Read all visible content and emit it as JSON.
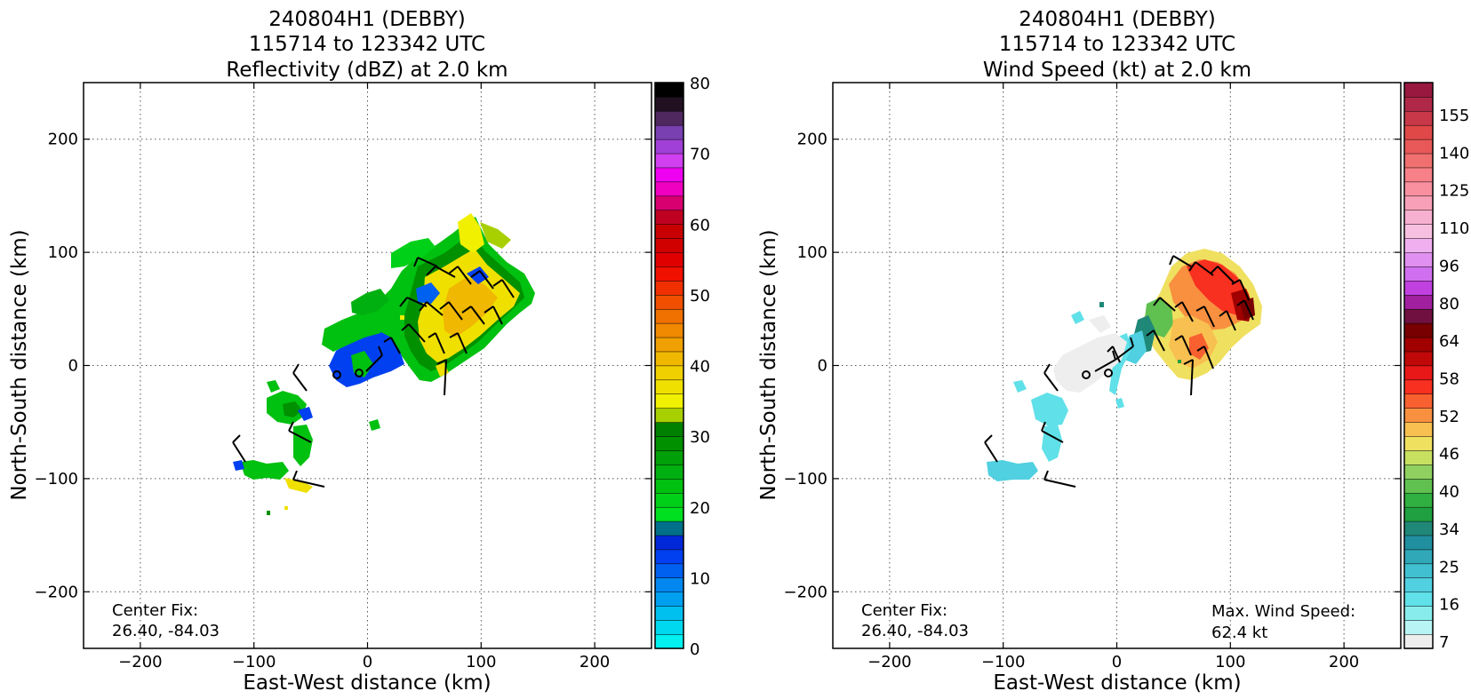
{
  "panels": [
    {
      "title_lines": [
        "240804H1 (DEBBY)",
        "115714 to 123342 UTC",
        "Reflectivity (dBZ) at 2.0 km"
      ],
      "xlabel": "East-West distance (km)",
      "ylabel": "North-South distance (km)",
      "center_fix": [
        "Center Fix:",
        "26.40, -84.03"
      ],
      "extra_note": []
    },
    {
      "title_lines": [
        "240804H1 (DEBBY)",
        "115714 to 123342 UTC",
        "Wind Speed (kt) at 2.0 km"
      ],
      "xlabel": "East-West distance (km)",
      "ylabel": "North-South distance (km)",
      "center_fix": [
        "Center Fix:",
        "26.40, -84.03"
      ],
      "extra_note": [
        "Max. Wind Speed:",
        "62.4 kt"
      ]
    }
  ],
  "chart_data": [
    {
      "type": "heatmap",
      "title": "240804H1 (DEBBY) 115714 to 123342 UTC Reflectivity (dBZ) at 2.0 km",
      "xlabel": "East-West distance (km)",
      "ylabel": "North-South distance (km)",
      "xlim": [
        -250,
        250
      ],
      "ylim": [
        -250,
        250
      ],
      "xticks": [
        -200,
        -100,
        0,
        100,
        200
      ],
      "yticks": [
        -200,
        -100,
        0,
        100,
        200
      ],
      "grid": true,
      "colorbar": {
        "label_values": [
          0,
          10,
          20,
          30,
          40,
          50,
          60,
          70,
          80
        ],
        "colors": [
          "#00f0f0",
          "#00d8f0",
          "#00c0f0",
          "#00a0f0",
          "#0088f0",
          "#0060f0",
          "#0040f0",
          "#0028d8",
          "#00708a",
          "#00e020",
          "#00d018",
          "#00c010",
          "#00b010",
          "#00a008",
          "#009000",
          "#008000",
          "#a8d000",
          "#f0f000",
          "#f0e000",
          "#f0d000",
          "#f0b800",
          "#f0a000",
          "#f08800",
          "#f07000",
          "#f05000",
          "#f03000",
          "#f01000",
          "#e00000",
          "#d00000",
          "#c80000",
          "#c00020",
          "#d80070",
          "#f000c0",
          "#f000f0",
          "#d040f0",
          "#a040d8",
          "#7840b0",
          "#502860",
          "#201020",
          "#000000"
        ]
      },
      "wind_barbs": true,
      "annotations": [
        "Center Fix:",
        "26.40, -84.03"
      ]
    },
    {
      "type": "heatmap",
      "title": "240804H1 (DEBBY) 115714 to 123342 UTC Wind Speed (kt) at 2.0 km",
      "xlabel": "East-West distance (km)",
      "ylabel": "North-South distance (km)",
      "xlim": [
        -250,
        250
      ],
      "ylim": [
        -250,
        250
      ],
      "xticks": [
        -200,
        -100,
        0,
        100,
        200
      ],
      "yticks": [
        -200,
        -100,
        0,
        100,
        200
      ],
      "grid": true,
      "colorbar": {
        "label_values": [
          7,
          16,
          25,
          34,
          40,
          46,
          52,
          58,
          64,
          80,
          96,
          110,
          125,
          140,
          155
        ],
        "colors": [
          "#eeeeee",
          "#b8f4f4",
          "#88ecec",
          "#60e0e8",
          "#50d0e0",
          "#40c0d0",
          "#30a8b8",
          "#2090a0",
          "#208878",
          "#20a040",
          "#30b040",
          "#60c050",
          "#90d060",
          "#c8e060",
          "#f0e060",
          "#f8c050",
          "#f89040",
          "#f86030",
          "#f83020",
          "#e81818",
          "#c00808",
          "#a00000",
          "#780000",
          "#701040",
          "#a020a0",
          "#c040e0",
          "#d070f0",
          "#e090f0",
          "#f0b0f0",
          "#f8c0e0",
          "#f8b0d0",
          "#f8a0b8",
          "#f890a0",
          "#f88088",
          "#f07070",
          "#e85858",
          "#e04848",
          "#c83848",
          "#b02848",
          "#981840"
        ]
      },
      "wind_barbs": true,
      "annotations": [
        "Center Fix:",
        "26.40, -84.03",
        "Max. Wind Speed:",
        "62.4 kt"
      ]
    }
  ]
}
